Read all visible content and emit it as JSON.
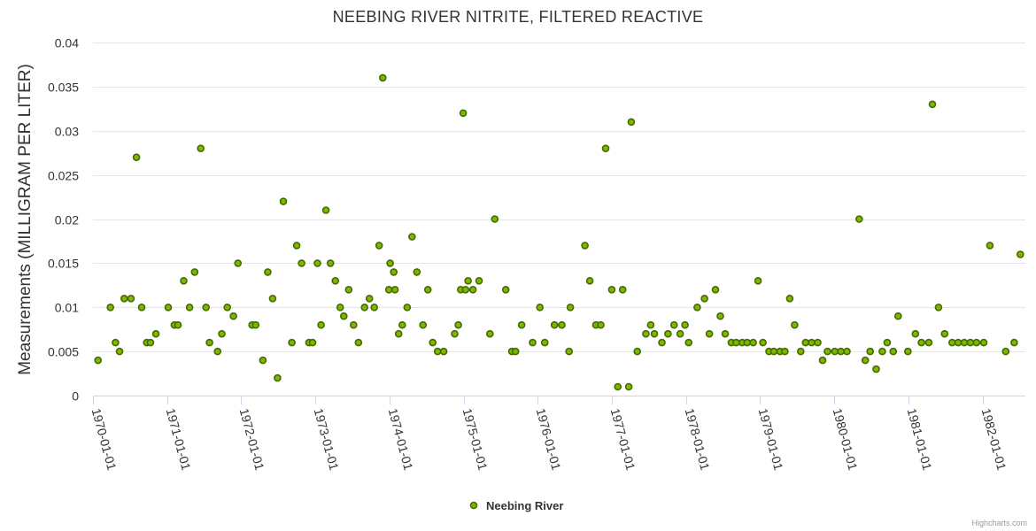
{
  "chart_data": {
    "type": "scatter",
    "title": "NEEBING RIVER NITRITE, FILTERED REACTIVE",
    "ylabel": "Measurements (MILLIGRAM PER LITER)",
    "xlabel": "",
    "ylim": [
      0,
      0.04
    ],
    "yticks": [
      "0",
      "0.005",
      "0.01",
      "0.015",
      "0.02",
      "0.025",
      "0.03",
      "0.035",
      "0.04"
    ],
    "xlim": [
      "1970-01-01",
      "1982-07-31"
    ],
    "xticks": [
      "1970-01-01",
      "1971-01-01",
      "1972-01-01",
      "1973-01-01",
      "1974-01-01",
      "1975-01-01",
      "1976-01-01",
      "1977-01-01",
      "1978-01-01",
      "1979-01-01",
      "1980-01-01",
      "1981-01-01",
      "1982-01-01"
    ],
    "grid": true,
    "legend_position": "bottom-center",
    "credits": "Highcharts.com",
    "series": [
      {
        "name": "Neebing River",
        "color": "#7cb800",
        "border_color": "#466b00",
        "points": [
          [
            "1970-01-26",
            0.004
          ],
          [
            "1970-03-28",
            0.01
          ],
          [
            "1970-04-22",
            0.006
          ],
          [
            "1970-05-12",
            0.005
          ],
          [
            "1970-06-04",
            0.011
          ],
          [
            "1970-07-07",
            0.011
          ],
          [
            "1970-08-03",
            0.027
          ],
          [
            "1970-08-29",
            0.01
          ],
          [
            "1970-09-23",
            0.006
          ],
          [
            "1970-10-11",
            0.006
          ],
          [
            "1970-11-07",
            0.007
          ],
          [
            "1971-01-07",
            0.01
          ],
          [
            "1971-02-06",
            0.008
          ],
          [
            "1971-02-24",
            0.008
          ],
          [
            "1971-03-24",
            0.013
          ],
          [
            "1971-04-22",
            0.01
          ],
          [
            "1971-05-17",
            0.014
          ],
          [
            "1971-06-16",
            0.028
          ],
          [
            "1971-07-12",
            0.01
          ],
          [
            "1971-07-29",
            0.006
          ],
          [
            "1971-09-07",
            0.005
          ],
          [
            "1971-09-28",
            0.007
          ],
          [
            "1971-10-25",
            0.01
          ],
          [
            "1971-11-24",
            0.009
          ],
          [
            "1971-12-16",
            0.015
          ],
          [
            "1972-02-24",
            0.008
          ],
          [
            "1972-03-13",
            0.008
          ],
          [
            "1972-04-17",
            0.004
          ],
          [
            "1972-05-11",
            0.014
          ],
          [
            "1972-06-04",
            0.011
          ],
          [
            "1972-06-28",
            0.002
          ],
          [
            "1972-07-27",
            0.022
          ],
          [
            "1972-09-07",
            0.006
          ],
          [
            "1972-10-01",
            0.017
          ],
          [
            "1972-10-25",
            0.015
          ],
          [
            "1972-11-30",
            0.006
          ],
          [
            "1972-12-18",
            0.006
          ],
          [
            "1973-01-11",
            0.015
          ],
          [
            "1973-01-29",
            0.008
          ],
          [
            "1973-02-22",
            0.021
          ],
          [
            "1973-03-16",
            0.015
          ],
          [
            "1973-04-09",
            0.013
          ],
          [
            "1973-05-03",
            0.01
          ],
          [
            "1973-05-21",
            0.009
          ],
          [
            "1973-06-14",
            0.012
          ],
          [
            "1973-07-08",
            0.008
          ],
          [
            "1973-08-01",
            0.006
          ],
          [
            "1973-08-31",
            0.01
          ],
          [
            "1973-09-24",
            0.011
          ],
          [
            "1973-10-18",
            0.01
          ],
          [
            "1973-11-11",
            0.017
          ],
          [
            "1973-11-29",
            0.036
          ],
          [
            "1973-12-29",
            0.012
          ],
          [
            "1974-01-04",
            0.015
          ],
          [
            "1974-01-22",
            0.014
          ],
          [
            "1974-01-28",
            0.012
          ],
          [
            "1974-02-15",
            0.007
          ],
          [
            "1974-03-05",
            0.008
          ],
          [
            "1974-03-29",
            0.01
          ],
          [
            "1974-04-22",
            0.018
          ],
          [
            "1974-05-16",
            0.014
          ],
          [
            "1974-06-15",
            0.008
          ],
          [
            "1974-07-09",
            0.012
          ],
          [
            "1974-08-02",
            0.006
          ],
          [
            "1974-08-26",
            0.005
          ],
          [
            "1974-09-25",
            0.005
          ],
          [
            "1974-11-18",
            0.007
          ],
          [
            "1974-12-06",
            0.008
          ],
          [
            "1974-12-18",
            0.012
          ],
          [
            "1974-12-30",
            0.032
          ],
          [
            "1975-01-11",
            0.012
          ],
          [
            "1975-01-23",
            0.013
          ],
          [
            "1975-02-16",
            0.012
          ],
          [
            "1975-03-18",
            0.013
          ],
          [
            "1975-05-11",
            0.007
          ],
          [
            "1975-06-04",
            0.02
          ],
          [
            "1975-07-28",
            0.012
          ],
          [
            "1975-08-27",
            0.005
          ],
          [
            "1975-09-14",
            0.005
          ],
          [
            "1975-10-14",
            0.008
          ],
          [
            "1975-12-07",
            0.006
          ],
          [
            "1976-01-12",
            0.01
          ],
          [
            "1976-02-05",
            0.006
          ],
          [
            "1976-03-24",
            0.008
          ],
          [
            "1976-04-29",
            0.008
          ],
          [
            "1976-06-04",
            0.005
          ],
          [
            "1976-06-10",
            0.01
          ],
          [
            "1976-08-21",
            0.017
          ],
          [
            "1976-09-14",
            0.013
          ],
          [
            "1976-10-14",
            0.008
          ],
          [
            "1976-11-07",
            0.008
          ],
          [
            "1976-12-01",
            0.028
          ],
          [
            "1976-12-31",
            0.012
          ],
          [
            "1977-01-30",
            0.001
          ],
          [
            "1977-02-23",
            0.012
          ],
          [
            "1977-03-25",
            0.001
          ],
          [
            "1977-04-06",
            0.031
          ],
          [
            "1977-05-06",
            0.005
          ],
          [
            "1977-06-17",
            0.007
          ],
          [
            "1977-07-11",
            0.008
          ],
          [
            "1977-07-29",
            0.007
          ],
          [
            "1977-09-04",
            0.006
          ],
          [
            "1977-10-04",
            0.007
          ],
          [
            "1977-11-03",
            0.008
          ],
          [
            "1977-12-03",
            0.007
          ],
          [
            "1977-12-27",
            0.008
          ],
          [
            "1978-01-14",
            0.006
          ],
          [
            "1978-02-25",
            0.01
          ],
          [
            "1978-04-02",
            0.011
          ],
          [
            "1978-04-26",
            0.007
          ],
          [
            "1978-05-26",
            0.012
          ],
          [
            "1978-06-19",
            0.009
          ],
          [
            "1978-07-13",
            0.007
          ],
          [
            "1978-08-12",
            0.006
          ],
          [
            "1978-09-05",
            0.006
          ],
          [
            "1978-10-05",
            0.006
          ],
          [
            "1978-10-29",
            0.006
          ],
          [
            "1978-11-28",
            0.006
          ],
          [
            "1978-12-22",
            0.013
          ],
          [
            "1979-01-15",
            0.006
          ],
          [
            "1979-02-14",
            0.005
          ],
          [
            "1979-03-10",
            0.005
          ],
          [
            "1979-04-09",
            0.005
          ],
          [
            "1979-05-03",
            0.005
          ],
          [
            "1979-05-27",
            0.011
          ],
          [
            "1979-06-20",
            0.008
          ],
          [
            "1979-07-20",
            0.005
          ],
          [
            "1979-08-13",
            0.006
          ],
          [
            "1979-09-12",
            0.006
          ],
          [
            "1979-10-12",
            0.006
          ],
          [
            "1979-11-05",
            0.004
          ],
          [
            "1979-11-29",
            0.005
          ],
          [
            "1980-01-04",
            0.005
          ],
          [
            "1980-02-03",
            0.005
          ],
          [
            "1980-03-04",
            0.005
          ],
          [
            "1980-05-03",
            0.02
          ],
          [
            "1980-06-02",
            0.004
          ],
          [
            "1980-06-26",
            0.005
          ],
          [
            "1980-07-26",
            0.003
          ],
          [
            "1980-08-25",
            0.005
          ],
          [
            "1980-09-18",
            0.006
          ],
          [
            "1980-10-18",
            0.005
          ],
          [
            "1980-11-11",
            0.009
          ],
          [
            "1980-12-29",
            0.005
          ],
          [
            "1981-02-04",
            0.007
          ],
          [
            "1981-03-06",
            0.006
          ],
          [
            "1981-04-11",
            0.006
          ],
          [
            "1981-04-29",
            0.033
          ],
          [
            "1981-05-29",
            0.01
          ],
          [
            "1981-06-28",
            0.007
          ],
          [
            "1981-08-04",
            0.006
          ],
          [
            "1981-09-03",
            0.006
          ],
          [
            "1981-10-03",
            0.006
          ],
          [
            "1981-11-02",
            0.006
          ],
          [
            "1981-12-02",
            0.006
          ],
          [
            "1982-01-07",
            0.006
          ],
          [
            "1982-02-06",
            0.017
          ],
          [
            "1982-04-25",
            0.005
          ],
          [
            "1982-06-06",
            0.006
          ],
          [
            "1982-07-06",
            0.016
          ]
        ]
      }
    ]
  }
}
